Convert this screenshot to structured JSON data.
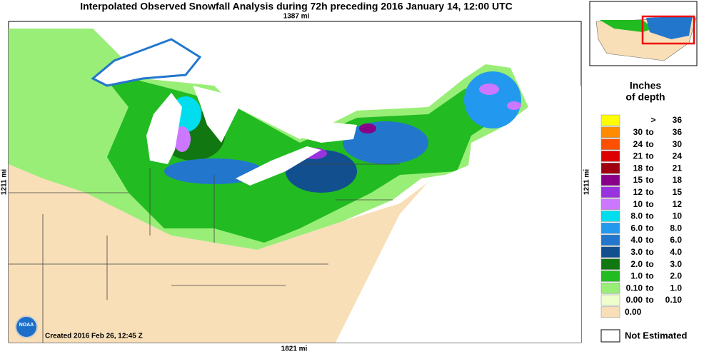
{
  "header": {
    "title": "Interpolated Observed Snowfall Analysis during 72h preceding 2016 January 14, 12:00 UTC"
  },
  "map": {
    "top_scale": "1387 mi",
    "left_scale": "1211 mi",
    "right_scale": "1211 mi",
    "bottom_scale": "1821 mi",
    "created": "Created 2016 Feb 26, 12:45 Z",
    "logo": "NOAA"
  },
  "legend": {
    "title": [
      "Inches",
      "of depth"
    ],
    "entries": [
      {
        "color": "#ffff00",
        "text": [
          ">",
          "36"
        ]
      },
      {
        "color": "#ff8c00",
        "text": [
          "30",
          "to",
          "36"
        ]
      },
      {
        "color": "#ff5000",
        "text": [
          "24",
          "to",
          "30"
        ]
      },
      {
        "color": "#dd0000",
        "text": [
          "21",
          "to",
          "24"
        ]
      },
      {
        "color": "#a00010",
        "text": [
          "18",
          "to",
          "21"
        ]
      },
      {
        "color": "#880088",
        "text": [
          "15",
          "to",
          "18"
        ]
      },
      {
        "color": "#9933dd",
        "text": [
          "12",
          "to",
          "15"
        ]
      },
      {
        "color": "#cc77ff",
        "text": [
          "10",
          "to",
          "12"
        ]
      },
      {
        "color": "#00ddee",
        "text": [
          "8.0",
          "to",
          "10"
        ]
      },
      {
        "color": "#2299ee",
        "text": [
          "6.0",
          "to",
          "8.0"
        ]
      },
      {
        "color": "#2277cc",
        "text": [
          "4.0",
          "to",
          "6.0"
        ]
      },
      {
        "color": "#114f8f",
        "text": [
          "3.0",
          "to",
          "4.0"
        ]
      },
      {
        "color": "#117711",
        "text": [
          "2.0",
          "to",
          "3.0"
        ]
      },
      {
        "color": "#22bb22",
        "text": [
          "1.0",
          "to",
          "2.0"
        ]
      },
      {
        "color": "#99ee77",
        "text": [
          "0.10",
          "to",
          "1.0"
        ]
      },
      {
        "color": "#eeffcc",
        "text": [
          "0.00",
          "to",
          "0.10"
        ]
      },
      {
        "color": "#f8dfb8",
        "text": [
          "0.00"
        ]
      }
    ],
    "not_estimated": "Not Estimated"
  }
}
